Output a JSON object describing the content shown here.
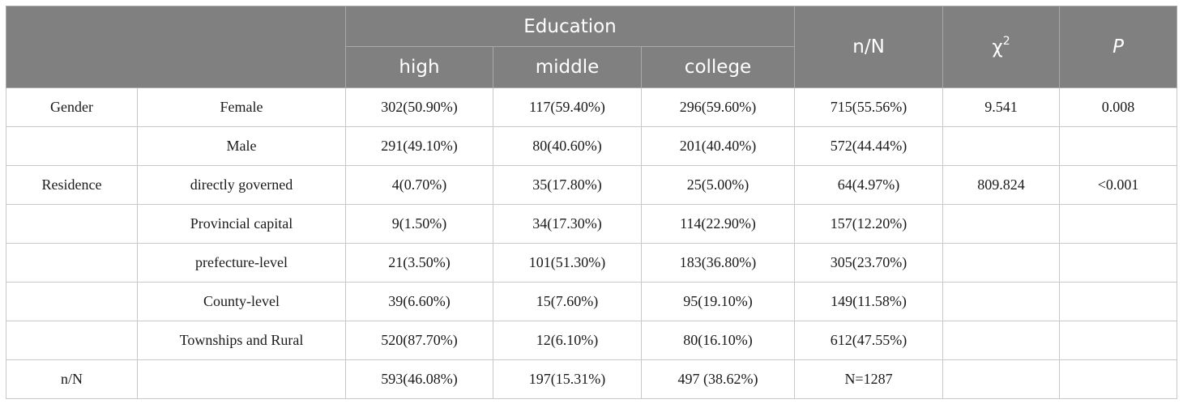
{
  "header": {
    "group_label": "Education",
    "columns": [
      "high",
      "middle",
      "college",
      "n/N",
      "χ",
      "P"
    ],
    "chi_superscript": "2"
  },
  "rows": [
    {
      "category": "Gender",
      "subcategory": "Female",
      "high": "302(50.90%)",
      "middle": "117(59.40%)",
      "college": "296(59.60%)",
      "nN": "715(55.56%)",
      "chi2": "9.541",
      "p": "0.008"
    },
    {
      "category": "",
      "subcategory": "Male",
      "high": "291(49.10%)",
      "middle": "80(40.60%)",
      "college": "201(40.40%)",
      "nN": "572(44.44%)",
      "chi2": "",
      "p": ""
    },
    {
      "category": "Residence",
      "subcategory": "directly governed",
      "high": "4(0.70%)",
      "middle": "35(17.80%)",
      "college": "25(5.00%)",
      "nN": "64(4.97%)",
      "chi2": "809.824",
      "p": "<0.001"
    },
    {
      "category": "",
      "subcategory": "Provincial capital",
      "high": "9(1.50%)",
      "middle": "34(17.30%)",
      "college": "114(22.90%)",
      "nN": "157(12.20%)",
      "chi2": "",
      "p": ""
    },
    {
      "category": "",
      "subcategory": "prefecture-level",
      "high": "21(3.50%)",
      "middle": "101(51.30%)",
      "college": "183(36.80%)",
      "nN": "305(23.70%)",
      "chi2": "",
      "p": ""
    },
    {
      "category": "",
      "subcategory": "County-level",
      "high": "39(6.60%)",
      "middle": "15(7.60%)",
      "college": "95(19.10%)",
      "nN": "149(11.58%)",
      "chi2": "",
      "p": ""
    },
    {
      "category": "",
      "subcategory": "Townships and Rural",
      "high": "520(87.70%)",
      "middle": "12(6.10%)",
      "college": "80(16.10%)",
      "nN": "612(47.55%)",
      "chi2": "",
      "p": ""
    },
    {
      "category": "n/N",
      "subcategory": "",
      "high": "593(46.08%)",
      "middle": "197(15.31%)",
      "college": "497 (38.62%)",
      "nN": "N=1287",
      "chi2": "",
      "p": ""
    }
  ]
}
